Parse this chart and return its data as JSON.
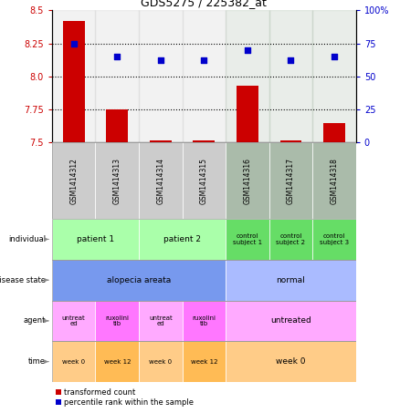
{
  "title": "GDS5275 / 225382_at",
  "samples": [
    "GSM1414312",
    "GSM1414313",
    "GSM1414314",
    "GSM1414315",
    "GSM1414316",
    "GSM1414317",
    "GSM1414318"
  ],
  "bar_values": [
    8.42,
    7.75,
    7.515,
    7.515,
    7.93,
    7.515,
    7.65
  ],
  "scatter_values": [
    75,
    65,
    62,
    62,
    70,
    62,
    65
  ],
  "ylim_left": [
    7.5,
    8.5
  ],
  "ylim_right": [
    0,
    100
  ],
  "yticks_left": [
    7.5,
    7.75,
    8.0,
    8.25,
    8.5
  ],
  "yticks_right": [
    0,
    25,
    50,
    75,
    100
  ],
  "ytick_labels_right": [
    "0",
    "25",
    "50",
    "75",
    "100%"
  ],
  "bar_color": "#cc0000",
  "scatter_color": "#0000cc",
  "hline_values": [
    7.75,
    8.0,
    8.25
  ],
  "row_labels": [
    "individual",
    "disease state",
    "agent",
    "time"
  ],
  "individual_spans": [
    {
      "start": 0,
      "end": 2,
      "label": "patient 1",
      "color": "#aaffaa"
    },
    {
      "start": 2,
      "end": 4,
      "label": "patient 2",
      "color": "#aaffaa"
    },
    {
      "start": 4,
      "end": 5,
      "label": "control\nsubject 1",
      "color": "#66dd66"
    },
    {
      "start": 5,
      "end": 6,
      "label": "control\nsubject 2",
      "color": "#66dd66"
    },
    {
      "start": 6,
      "end": 7,
      "label": "control\nsubject 3",
      "color": "#66dd66"
    }
  ],
  "disease_spans": [
    {
      "start": 0,
      "end": 4,
      "label": "alopecia areata",
      "color": "#7799ee"
    },
    {
      "start": 4,
      "end": 7,
      "label": "normal",
      "color": "#aabbff"
    }
  ],
  "agent_spans": [
    {
      "start": 0,
      "end": 1,
      "label": "untreat\ned",
      "color": "#ffaaff"
    },
    {
      "start": 1,
      "end": 2,
      "label": "ruxolini\ntib",
      "color": "#ff77ff"
    },
    {
      "start": 2,
      "end": 3,
      "label": "untreat\ned",
      "color": "#ffaaff"
    },
    {
      "start": 3,
      "end": 4,
      "label": "ruxolini\ntib",
      "color": "#ff77ff"
    },
    {
      "start": 4,
      "end": 7,
      "label": "untreated",
      "color": "#ffaaff"
    }
  ],
  "time_spans": [
    {
      "start": 0,
      "end": 1,
      "label": "week 0",
      "color": "#ffcc88"
    },
    {
      "start": 1,
      "end": 2,
      "label": "week 12",
      "color": "#ffbb55"
    },
    {
      "start": 2,
      "end": 3,
      "label": "week 0",
      "color": "#ffcc88"
    },
    {
      "start": 3,
      "end": 4,
      "label": "week 12",
      "color": "#ffbb55"
    },
    {
      "start": 4,
      "end": 7,
      "label": "week 0",
      "color": "#ffcc88"
    }
  ],
  "sample_bg_colors": [
    "#cccccc",
    "#cccccc",
    "#cccccc",
    "#cccccc",
    "#aabbaa",
    "#aabbaa",
    "#aabbaa"
  ]
}
